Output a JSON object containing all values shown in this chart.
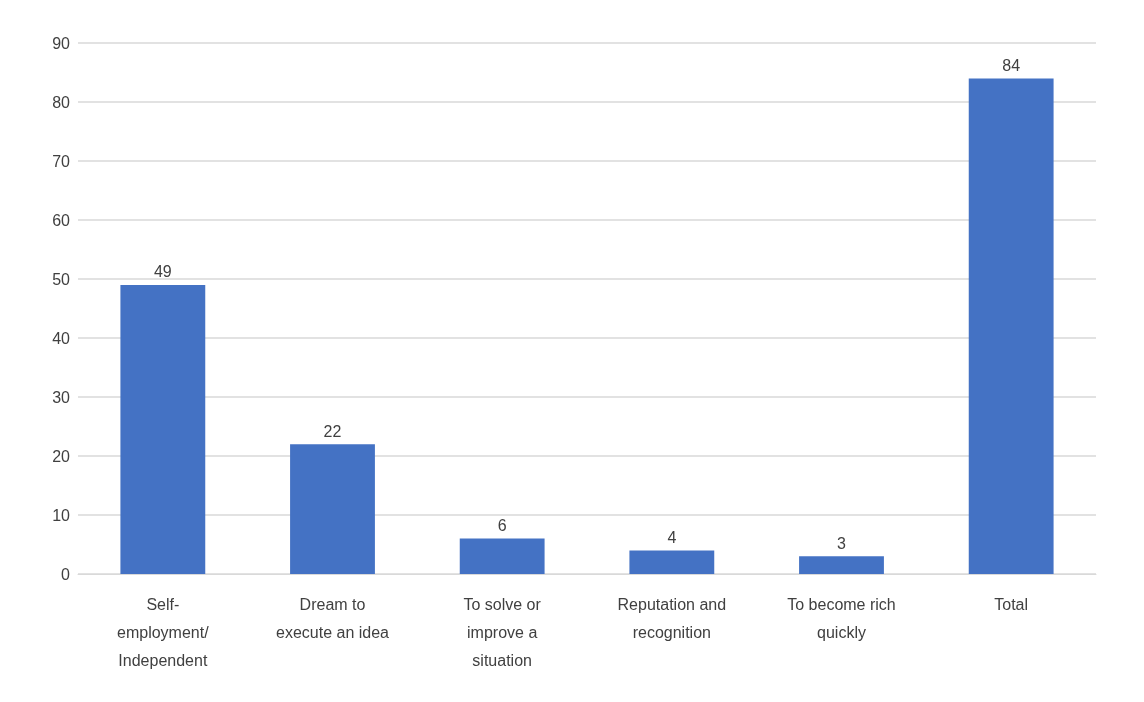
{
  "chart_data": {
    "type": "bar",
    "categories": [
      "Self-employment/ Independent",
      "Dream to execute an idea",
      "To solve or improve a situation",
      "Reputation and recognition",
      "To become rich quickly",
      "Total"
    ],
    "values": [
      49,
      22,
      6,
      4,
      3,
      84
    ],
    "color": "#4472c4",
    "ylim": [
      0,
      90
    ],
    "yticks": [
      0,
      10,
      20,
      30,
      40,
      50,
      60,
      70,
      80,
      90
    ],
    "grid": "y",
    "data_labels": true
  }
}
